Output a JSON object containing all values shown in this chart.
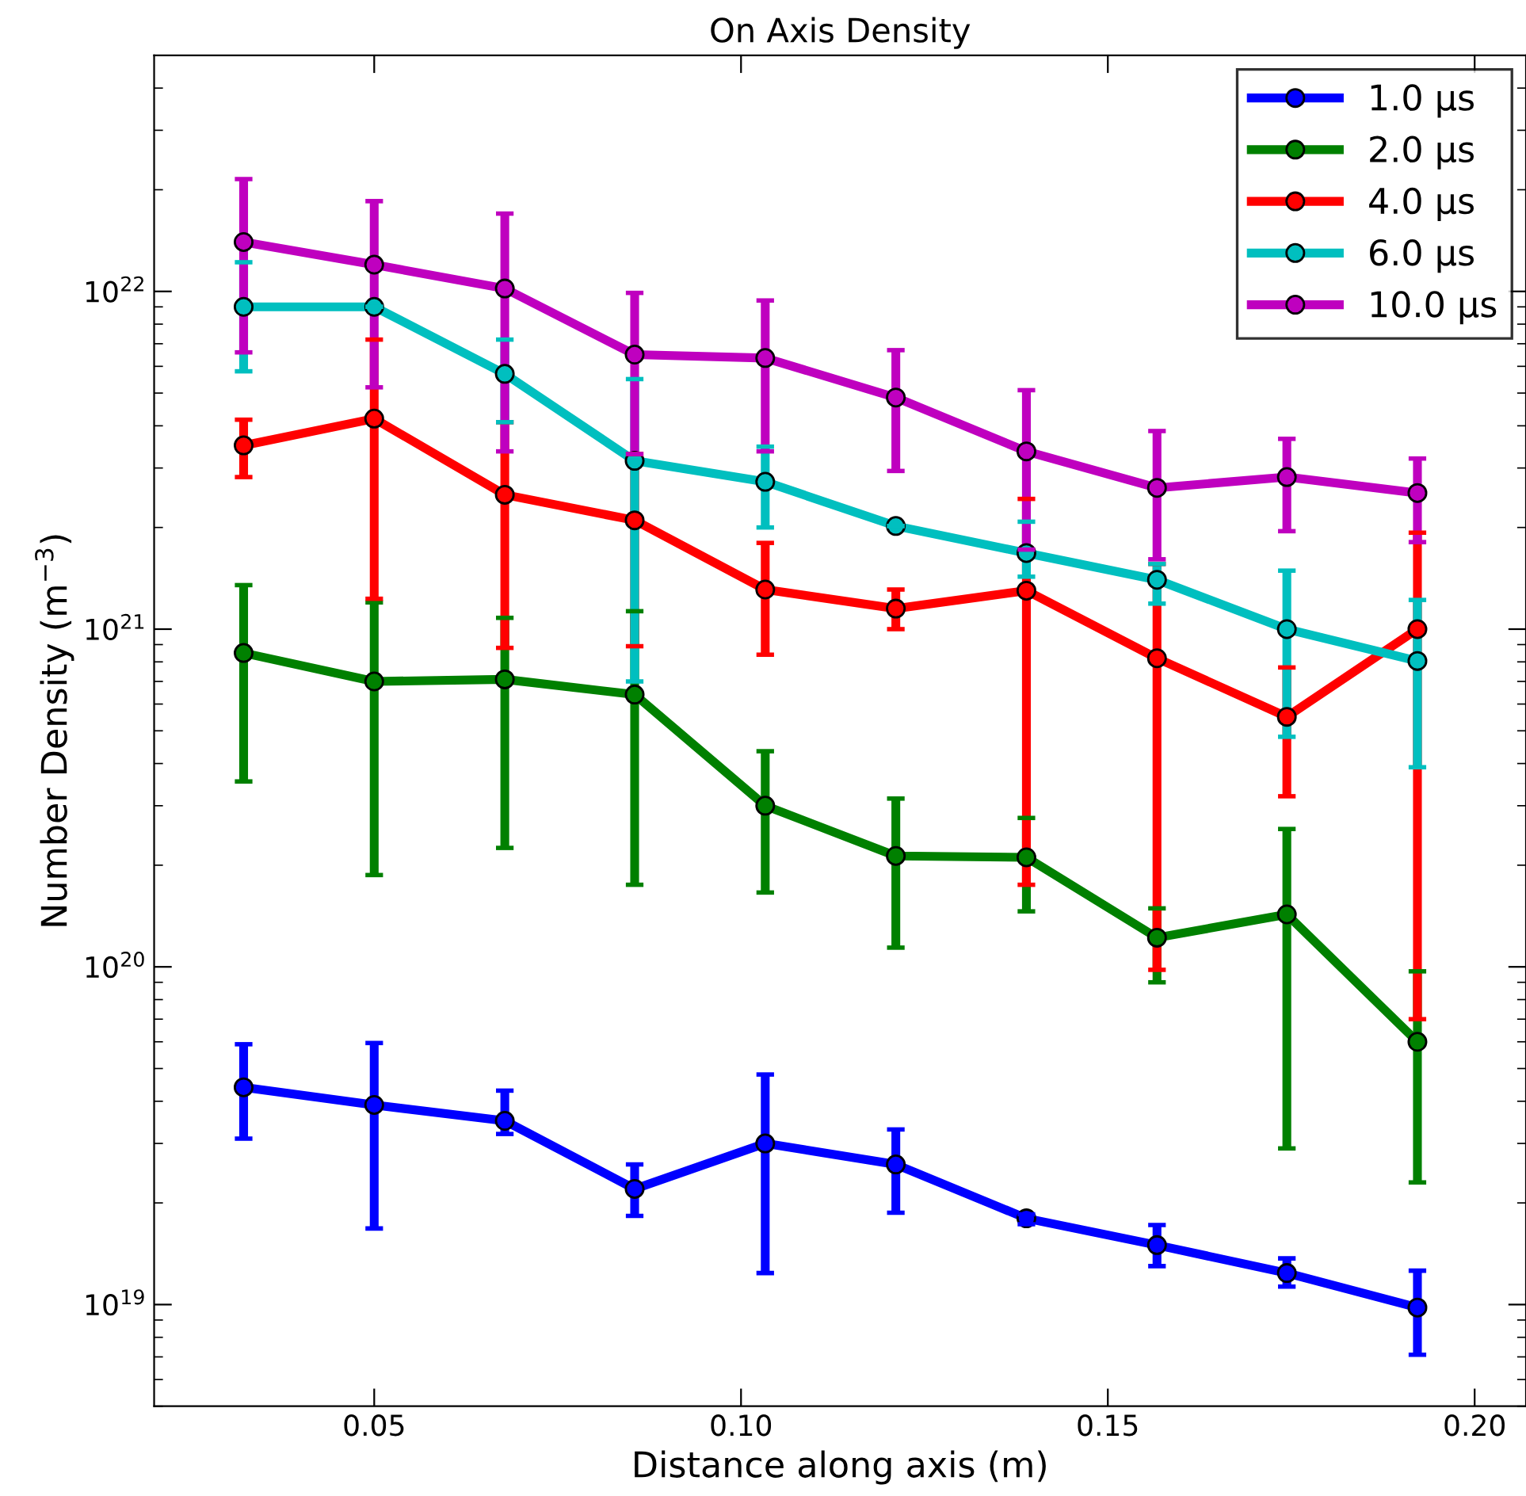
{
  "chart_data": {
    "type": "line",
    "title": "On Axis Density",
    "xlabel": "Distance along axis (m)",
    "ylabel": "Number Density (m$^{−3}$)",
    "x": [
      0.0322,
      0.05,
      0.0678,
      0.0855,
      0.1033,
      0.1211,
      0.1389,
      0.1567,
      0.1744,
      0.1922
    ],
    "log": "y",
    "xlim": [
      0.02,
      0.207
    ],
    "ylim": [
      5e+18,
      5e+22
    ],
    "xticks": [
      {
        "value": 0.05,
        "label": "0.05"
      },
      {
        "value": 0.1,
        "label": "0.10"
      },
      {
        "value": 0.15,
        "label": "0.15"
      },
      {
        "value": 0.2,
        "label": "0.20"
      }
    ],
    "yticks": [
      {
        "value": 1e+19,
        "label": "10$^{19}$"
      },
      {
        "value": 1e+20,
        "label": "10$^{20}$"
      },
      {
        "value": 1e+21,
        "label": "10$^{21}$"
      },
      {
        "value": 1e+22,
        "label": "10$^{22}$"
      }
    ],
    "grid": false,
    "legend": "top right",
    "marker": "circle",
    "line_style": "solid",
    "series": [
      {
        "name": "1.0 μs",
        "color": "#0000ff",
        "values": [
          4.4e+19,
          3.9e+19,
          3.5e+19,
          2.2e+19,
          3e+19,
          2.6e+19,
          1.8e+19,
          1.5e+19,
          1.24e+19,
          9.8e+18
        ],
        "errors": [
          [
            3.1e+19,
            5.9e+19
          ],
          [
            1.68e+19,
            5.95e+19
          ],
          [
            3.2e+19,
            4.3e+19
          ],
          [
            1.83e+19,
            2.6e+19
          ],
          [
            1.24e+19,
            4.8e+19
          ],
          [
            1.87e+19,
            3.3e+19
          ],
          [
            1.73e+19,
            1.85e+19
          ],
          [
            1.3e+19,
            1.72e+19
          ],
          [
            1.13e+19,
            1.37e+19
          ],
          [
            7.1e+18,
            1.26e+19
          ]
        ]
      },
      {
        "name": "2.0 μs",
        "color": "#008000",
        "values": [
          8.5e+20,
          7e+20,
          7.1e+20,
          6.4e+20,
          3e+20,
          2.13e+20,
          2.11e+20,
          1.22e+20,
          1.43e+20,
          6e+19
        ],
        "errors": [
          [
            3.54e+20,
            1.35e+21
          ],
          [
            1.87e+20,
            1.2e+21
          ],
          [
            2.25e+20,
            1.08e+21
          ],
          [
            1.75e+20,
            1.13e+21
          ],
          [
            1.66e+20,
            4.35e+20
          ],
          [
            1.14e+20,
            3.15e+20
          ],
          [
            1.46e+20,
            2.76e+20
          ],
          [
            9e+19,
            1.49e+20
          ],
          [
            2.9e+19,
            2.56e+20
          ],
          [
            2.3e+19,
            9.7e+19
          ]
        ]
      },
      {
        "name": "4.0 μs",
        "color": "#ff0000",
        "values": [
          3.5e+21,
          4.2e+21,
          2.5e+21,
          2.1e+21,
          1.31e+21,
          1.15e+21,
          1.3e+21,
          8.2e+20,
          5.5e+20,
          1e+21
        ],
        "errors": [
          [
            2.82e+21,
            4.17e+21
          ],
          [
            1.23e+21,
            7.2e+21
          ],
          [
            8.8e+20,
            4.1e+21
          ],
          [
            8.9e+20,
            3.3e+21
          ],
          [
            8.4e+20,
            1.8e+21
          ],
          [
            1e+21,
            1.31e+21
          ],
          [
            1.75e+20,
            2.43e+21
          ],
          [
            9.8e+19,
            1.56e+21
          ],
          [
            3.2e+20,
            7.7e+20
          ],
          [
            7e+19,
            1.93e+21
          ]
        ]
      },
      {
        "name": "6.0 μs",
        "color": "#00bfbf",
        "values": [
          9e+21,
          9e+21,
          5.7e+21,
          3.15e+21,
          2.73e+21,
          2.02e+21,
          1.68e+21,
          1.4e+21,
          1e+21,
          8.05e+20
        ],
        "errors": [
          [
            5.8e+21,
            1.22e+22
          ],
          null,
          [
            4.1e+21,
            7.2e+21
          ],
          [
            7e+20,
            5.5e+21
          ],
          [
            2e+21,
            3.47e+21
          ],
          null,
          [
            1.43e+21,
            2.08e+21
          ],
          [
            1.19e+21,
            1.56e+21
          ],
          [
            4.8e+20,
            1.49e+21
          ],
          [
            3.9e+20,
            1.22e+21
          ]
        ]
      },
      {
        "name": "10.0 μs",
        "color": "#bf00bf",
        "values": [
          1.4e+22,
          1.2e+22,
          1.02e+22,
          6.5e+21,
          6.35e+21,
          4.85e+21,
          3.36e+21,
          2.62e+21,
          2.82e+21,
          2.53e+21
        ],
        "errors": [
          [
            6.6e+21,
            2.15e+22
          ],
          [
            5.2e+21,
            1.85e+22
          ],
          [
            3.36e+21,
            1.7e+22
          ],
          [
            3.3e+21,
            9.9e+21
          ],
          [
            3.36e+21,
            9.4e+21
          ],
          [
            2.94e+21,
            6.7e+21
          ],
          [
            1.72e+21,
            5.1e+21
          ],
          [
            1.61e+21,
            3.86e+21
          ],
          [
            1.95e+21,
            3.66e+21
          ],
          [
            1.81e+21,
            3.2e+21
          ]
        ]
      }
    ]
  }
}
